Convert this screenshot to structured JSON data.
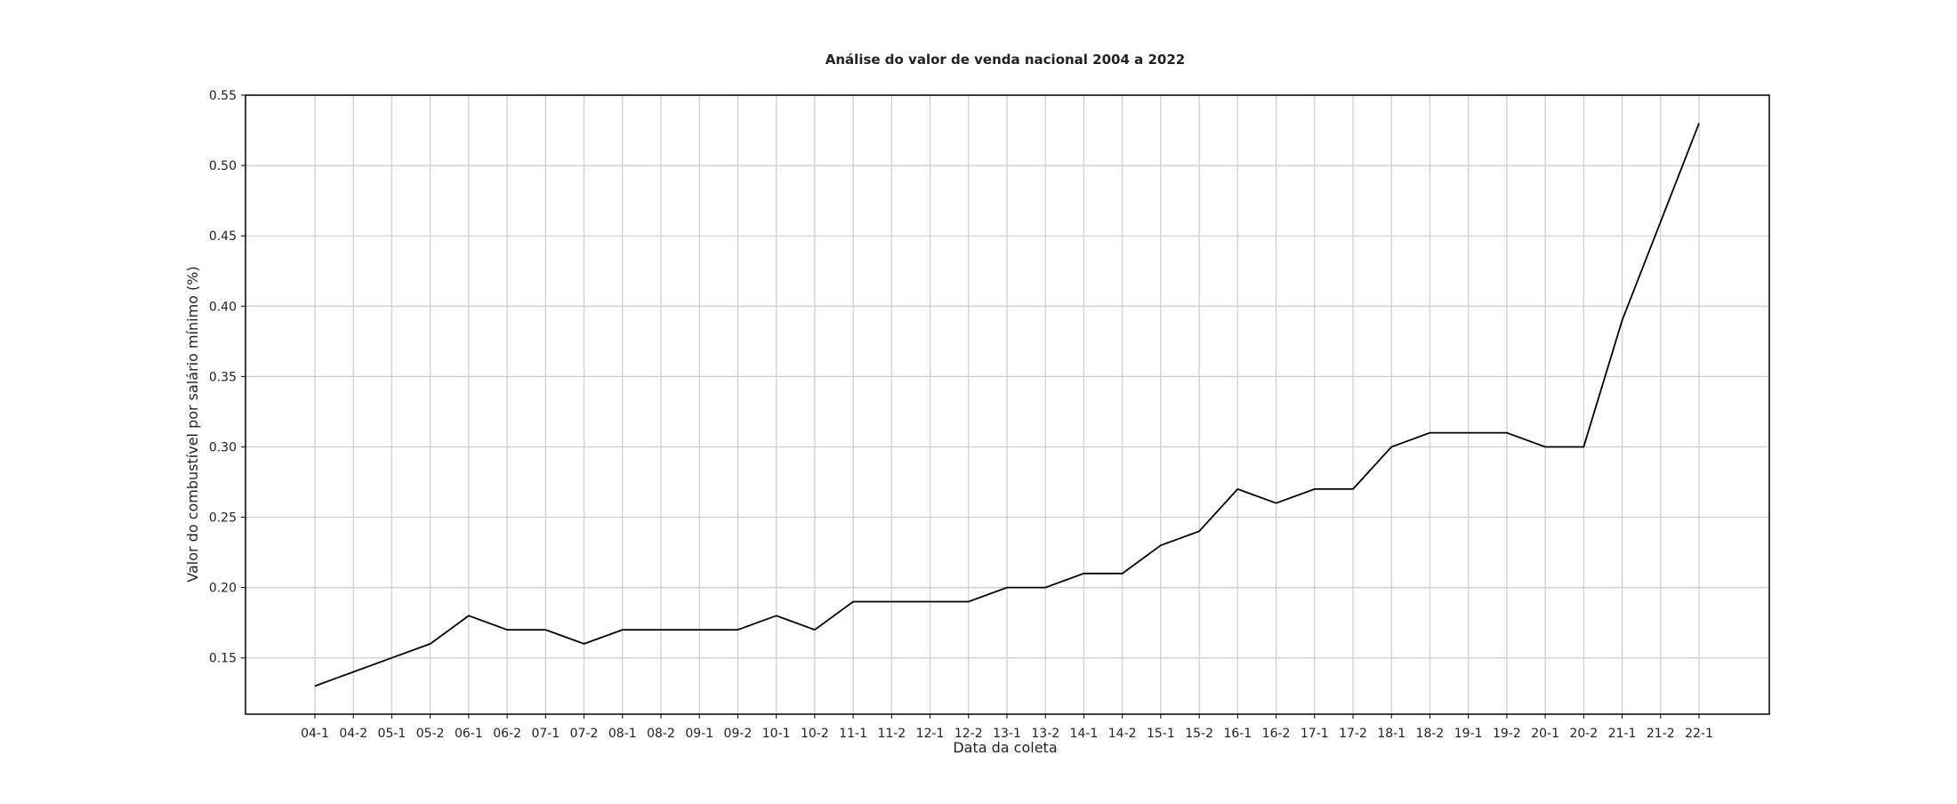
{
  "chart_data": {
    "type": "line",
    "title": "Análise do valor de venda nacional 2004 a 2022",
    "xlabel": "Data da coleta",
    "ylabel": "Valor do combustível por salário mínimo (%)",
    "categories": [
      "04-1",
      "04-2",
      "05-1",
      "05-2",
      "06-1",
      "06-2",
      "07-1",
      "07-2",
      "08-1",
      "08-2",
      "09-1",
      "09-2",
      "10-1",
      "10-2",
      "11-1",
      "11-2",
      "12-1",
      "12-2",
      "13-1",
      "13-2",
      "14-1",
      "14-2",
      "15-1",
      "15-2",
      "16-1",
      "16-2",
      "17-1",
      "17-2",
      "18-1",
      "18-2",
      "19-1",
      "19-2",
      "20-1",
      "20-2",
      "21-1",
      "21-2",
      "22-1"
    ],
    "series": [
      {
        "values": [
          0.13,
          0.14,
          0.15,
          0.16,
          0.18,
          0.17,
          0.17,
          0.16,
          0.17,
          0.17,
          0.17,
          0.17,
          0.18,
          0.17,
          0.19,
          0.19,
          0.19,
          0.19,
          0.2,
          0.2,
          0.21,
          0.21,
          0.23,
          0.24,
          0.27,
          0.26,
          0.27,
          0.27,
          0.3,
          0.31,
          0.31,
          0.31,
          0.3,
          0.3,
          0.39,
          0.46,
          0.53
        ],
        "color": "#000000"
      }
    ],
    "yticks": [
      "0.15",
      "0.20",
      "0.25",
      "0.30",
      "0.35",
      "0.40",
      "0.45",
      "0.50",
      "0.55"
    ],
    "ylim": [
      0.11,
      0.55
    ],
    "grid": true,
    "legend": "none"
  }
}
